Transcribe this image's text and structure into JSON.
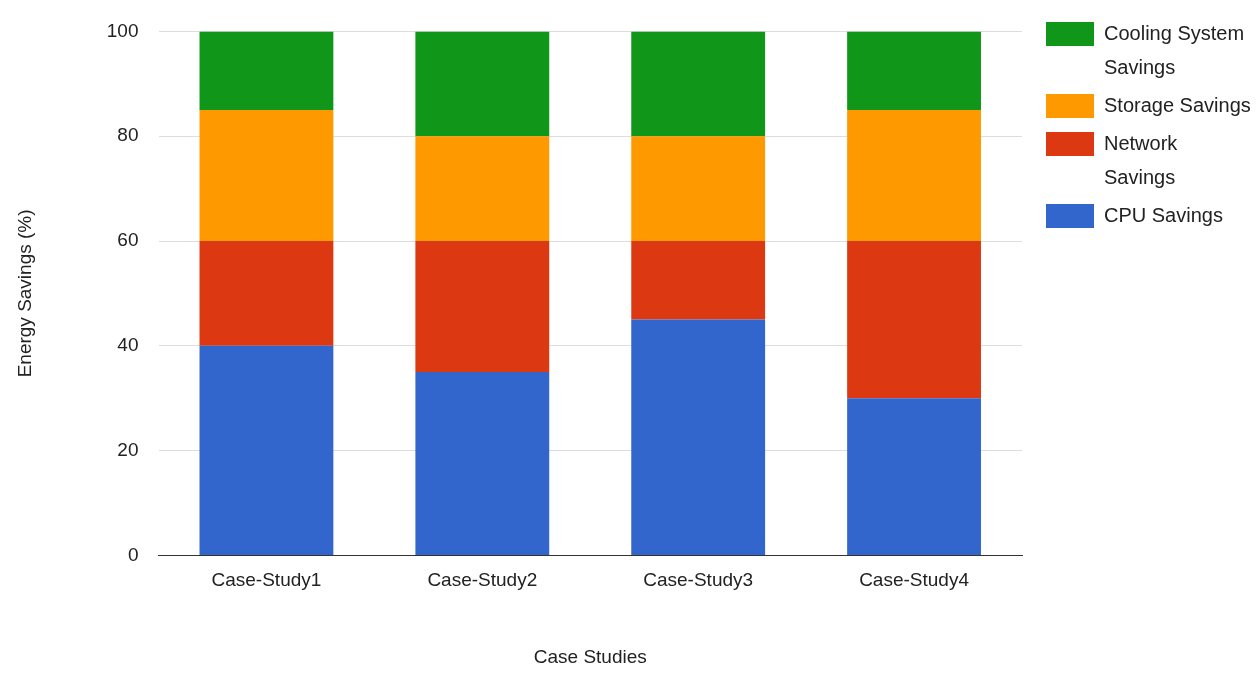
{
  "chart_data": {
    "type": "bar",
    "stacked": true,
    "xlabel": "Case Studies",
    "ylabel": "Energy Savings (%)",
    "categories": [
      "Case-Study1",
      "Case-Study2",
      "Case-Study3",
      "Case-Study4"
    ],
    "series": [
      {
        "name": "CPU Savings",
        "color": "#3366cc",
        "values": [
          40,
          35,
          45,
          30
        ]
      },
      {
        "name": "Network Savings",
        "color": "#dc3912",
        "values": [
          20,
          25,
          15,
          30
        ]
      },
      {
        "name": "Storage Savings",
        "color": "#ff9900",
        "values": [
          25,
          20,
          20,
          25
        ]
      },
      {
        "name": "Cooling System Savings",
        "color": "#109618",
        "values": [
          15,
          20,
          20,
          15
        ]
      }
    ],
    "ylim": [
      0,
      100
    ],
    "yticks": [
      0,
      20,
      40,
      60,
      80,
      100
    ],
    "grid": "y",
    "legend": "right"
  }
}
